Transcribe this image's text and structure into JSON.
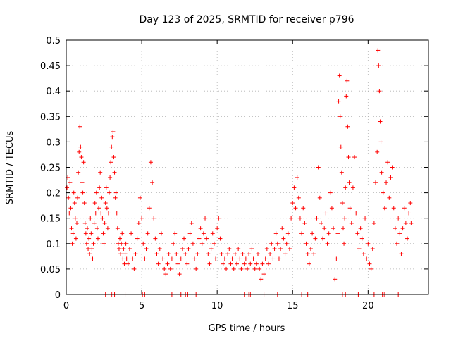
{
  "chart_data": {
    "type": "scatter",
    "title": "Day 123 of 2025, SRMTID for receiver p796",
    "xlabel": "GPS time / hours",
    "ylabel": "SRMTID / TECUs",
    "xlim": [
      0,
      24
    ],
    "ylim": [
      0,
      0.5
    ],
    "xticks": [
      0,
      5,
      10,
      15,
      20
    ],
    "xtick_labels": [
      "0",
      "5",
      "10",
      "15",
      "20"
    ],
    "yticks": [
      0,
      0.05,
      0.1,
      0.15,
      0.2,
      0.25,
      0.3,
      0.35,
      0.4,
      0.45,
      0.5
    ],
    "ytick_labels": [
      "0",
      "0.05",
      "0.1",
      "0.15",
      "0.2",
      "0.25",
      "0.3",
      "0.35",
      "0.4",
      "0.45",
      "0.5"
    ],
    "grid": true,
    "marker": "+",
    "color": "#ff0000",
    "series": [
      {
        "name": "SRMTID",
        "points": [
          [
            0.05,
            0.21
          ],
          [
            0.1,
            0.23
          ],
          [
            0.15,
            0.19
          ],
          [
            0.2,
            0.16
          ],
          [
            0.25,
            0.22
          ],
          [
            0.3,
            0.17
          ],
          [
            0.35,
            0.13
          ],
          [
            0.4,
            0.1
          ],
          [
            0.45,
            0.12
          ],
          [
            0.5,
            0.2
          ],
          [
            0.55,
            0.18
          ],
          [
            0.6,
            0.15
          ],
          [
            0.65,
            0.11
          ],
          [
            0.7,
            0.14
          ],
          [
            0.75,
            0.19
          ],
          [
            0.8,
            0.24
          ],
          [
            0.85,
            0.28
          ],
          [
            0.9,
            0.33
          ],
          [
            0.95,
            0.29
          ],
          [
            1.0,
            0.27
          ],
          [
            1.05,
            0.22
          ],
          [
            1.1,
            0.2
          ],
          [
            1.15,
            0.26
          ],
          [
            1.2,
            0.18
          ],
          [
            1.25,
            0.14
          ],
          [
            1.3,
            0.12
          ],
          [
            1.35,
            0.1
          ],
          [
            1.4,
            0.13
          ],
          [
            1.45,
            0.09
          ],
          [
            1.5,
            0.11
          ],
          [
            1.55,
            0.08
          ],
          [
            1.6,
            0.15
          ],
          [
            1.65,
            0.12
          ],
          [
            1.7,
            0.09
          ],
          [
            1.75,
            0.07
          ],
          [
            1.8,
            0.1
          ],
          [
            1.85,
            0.14
          ],
          [
            1.9,
            0.18
          ],
          [
            1.95,
            0.16
          ],
          [
            2.0,
            0.2
          ],
          [
            2.05,
            0.13
          ],
          [
            2.1,
            0.11
          ],
          [
            2.15,
            0.17
          ],
          [
            2.2,
            0.21
          ],
          [
            2.25,
            0.24
          ],
          [
            2.3,
            0.16
          ],
          [
            2.35,
            0.19
          ],
          [
            2.4,
            0.15
          ],
          [
            2.45,
            0.12
          ],
          [
            2.5,
            0.1
          ],
          [
            2.55,
            0.14
          ],
          [
            2.6,
            0.18
          ],
          [
            2.65,
            0.21
          ],
          [
            2.7,
            0.17
          ],
          [
            2.75,
            0.13
          ],
          [
            2.8,
            0.16
          ],
          [
            2.85,
            0.2
          ],
          [
            2.9,
            0.23
          ],
          [
            2.95,
            0.26
          ],
          [
            3.0,
            0.29
          ],
          [
            3.05,
            0.31
          ],
          [
            3.1,
            0.32
          ],
          [
            3.15,
            0.27
          ],
          [
            3.2,
            0.24
          ],
          [
            3.25,
            0.19
          ],
          [
            3.3,
            0.2
          ],
          [
            3.35,
            0.16
          ],
          [
            3.4,
            0.13
          ],
          [
            3.45,
            0.1
          ],
          [
            3.5,
            0.09
          ],
          [
            3.55,
            0.11
          ],
          [
            3.6,
            0.08
          ],
          [
            3.65,
            0.1
          ],
          [
            3.7,
            0.12
          ],
          [
            3.75,
            0.07
          ],
          [
            3.8,
            0.09
          ],
          [
            3.85,
            0.06
          ],
          [
            3.9,
            0.08
          ],
          [
            3.95,
            0.1
          ],
          [
            4.0,
            0.07
          ],
          [
            4.1,
            0.06
          ],
          [
            4.2,
            0.09
          ],
          [
            4.3,
            0.12
          ],
          [
            4.4,
            0.07
          ],
          [
            4.5,
            0.05
          ],
          [
            4.6,
            0.08
          ],
          [
            4.7,
            0.11
          ],
          [
            4.8,
            0.14
          ],
          [
            4.9,
            0.19
          ],
          [
            5.0,
            0.15
          ],
          [
            5.1,
            0.1
          ],
          [
            5.2,
            0.07
          ],
          [
            5.3,
            0.09
          ],
          [
            5.4,
            0.12
          ],
          [
            5.5,
            0.17
          ],
          [
            5.6,
            0.26
          ],
          [
            5.7,
            0.22
          ],
          [
            5.8,
            0.15
          ],
          [
            5.9,
            0.11
          ],
          [
            6.0,
            0.08
          ],
          [
            6.1,
            0.06
          ],
          [
            6.2,
            0.09
          ],
          [
            6.3,
            0.12
          ],
          [
            6.4,
            0.07
          ],
          [
            6.5,
            0.05
          ],
          [
            6.6,
            0.04
          ],
          [
            6.7,
            0.06
          ],
          [
            6.8,
            0.08
          ],
          [
            6.9,
            0.05
          ],
          [
            7.0,
            0.07
          ],
          [
            7.1,
            0.1
          ],
          [
            7.2,
            0.12
          ],
          [
            7.3,
            0.08
          ],
          [
            7.4,
            0.06
          ],
          [
            7.5,
            0.04
          ],
          [
            7.6,
            0.07
          ],
          [
            7.7,
            0.09
          ],
          [
            7.8,
            0.11
          ],
          [
            7.9,
            0.08
          ],
          [
            8.0,
            0.06
          ],
          [
            8.1,
            0.09
          ],
          [
            8.2,
            0.12
          ],
          [
            8.3,
            0.14
          ],
          [
            8.4,
            0.1
          ],
          [
            8.5,
            0.07
          ],
          [
            8.6,
            0.05
          ],
          [
            8.7,
            0.08
          ],
          [
            8.8,
            0.11
          ],
          [
            8.9,
            0.13
          ],
          [
            9.0,
            0.1
          ],
          [
            9.1,
            0.12
          ],
          [
            9.2,
            0.15
          ],
          [
            9.3,
            0.11
          ],
          [
            9.4,
            0.08
          ],
          [
            9.5,
            0.06
          ],
          [
            9.6,
            0.09
          ],
          [
            9.7,
            0.12
          ],
          [
            9.8,
            0.1
          ],
          [
            9.9,
            0.07
          ],
          [
            10.0,
            0.13
          ],
          [
            10.1,
            0.15
          ],
          [
            10.2,
            0.11
          ],
          [
            10.3,
            0.08
          ],
          [
            10.4,
            0.06
          ],
          [
            10.5,
            0.07
          ],
          [
            10.6,
            0.05
          ],
          [
            10.7,
            0.08
          ],
          [
            10.8,
            0.09
          ],
          [
            10.9,
            0.06
          ],
          [
            11.0,
            0.07
          ],
          [
            11.1,
            0.05
          ],
          [
            11.2,
            0.08
          ],
          [
            11.3,
            0.06
          ],
          [
            11.4,
            0.09
          ],
          [
            11.5,
            0.07
          ],
          [
            11.6,
            0.05
          ],
          [
            11.7,
            0.08
          ],
          [
            11.8,
            0.06
          ],
          [
            11.9,
            0.07
          ],
          [
            12.0,
            0.05
          ],
          [
            12.1,
            0.08
          ],
          [
            12.2,
            0.06
          ],
          [
            12.3,
            0.09
          ],
          [
            12.4,
            0.07
          ],
          [
            12.5,
            0.05
          ],
          [
            12.6,
            0.06
          ],
          [
            12.7,
            0.08
          ],
          [
            12.8,
            0.05
          ],
          [
            12.9,
            0.03
          ],
          [
            13.0,
            0.06
          ],
          [
            13.1,
            0.04
          ],
          [
            13.2,
            0.07
          ],
          [
            13.3,
            0.09
          ],
          [
            13.4,
            0.06
          ],
          [
            13.5,
            0.08
          ],
          [
            13.6,
            0.1
          ],
          [
            13.7,
            0.07
          ],
          [
            13.8,
            0.09
          ],
          [
            13.9,
            0.12
          ],
          [
            14.0,
            0.1
          ],
          [
            14.1,
            0.07
          ],
          [
            14.2,
            0.09
          ],
          [
            14.3,
            0.13
          ],
          [
            14.4,
            0.11
          ],
          [
            14.5,
            0.08
          ],
          [
            14.6,
            0.1
          ],
          [
            14.7,
            0.12
          ],
          [
            14.8,
            0.09
          ],
          [
            14.9,
            0.15
          ],
          [
            15.0,
            0.18
          ],
          [
            15.1,
            0.21
          ],
          [
            15.2,
            0.17
          ],
          [
            15.3,
            0.23
          ],
          [
            15.4,
            0.19
          ],
          [
            15.5,
            0.15
          ],
          [
            15.6,
            0.12
          ],
          [
            15.7,
            0.17
          ],
          [
            15.8,
            0.14
          ],
          [
            15.9,
            0.1
          ],
          [
            16.0,
            0.08
          ],
          [
            16.1,
            0.06
          ],
          [
            16.2,
            0.09
          ],
          [
            16.3,
            0.12
          ],
          [
            16.4,
            0.08
          ],
          [
            16.5,
            0.11
          ],
          [
            16.6,
            0.15
          ],
          [
            16.7,
            0.25
          ],
          [
            16.8,
            0.19
          ],
          [
            16.9,
            0.14
          ],
          [
            17.0,
            0.11
          ],
          [
            17.1,
            0.13
          ],
          [
            17.2,
            0.16
          ],
          [
            17.3,
            0.1
          ],
          [
            17.4,
            0.12
          ],
          [
            17.5,
            0.2
          ],
          [
            17.6,
            0.17
          ],
          [
            17.7,
            0.13
          ],
          [
            17.8,
            0.03
          ],
          [
            17.9,
            0.07
          ],
          [
            18.0,
            0.12
          ],
          [
            18.05,
            0.38
          ],
          [
            18.1,
            0.43
          ],
          [
            18.15,
            0.35
          ],
          [
            18.2,
            0.29
          ],
          [
            18.25,
            0.24
          ],
          [
            18.3,
            0.18
          ],
          [
            18.35,
            0.13
          ],
          [
            18.4,
            0.1
          ],
          [
            18.45,
            0.15
          ],
          [
            18.5,
            0.21
          ],
          [
            18.55,
            0.39
          ],
          [
            18.6,
            0.42
          ],
          [
            18.65,
            0.33
          ],
          [
            18.7,
            0.27
          ],
          [
            18.75,
            0.22
          ],
          [
            18.8,
            0.17
          ],
          [
            18.9,
            0.14
          ],
          [
            19.0,
            0.21
          ],
          [
            19.1,
            0.27
          ],
          [
            19.2,
            0.16
          ],
          [
            19.3,
            0.12
          ],
          [
            19.4,
            0.09
          ],
          [
            19.5,
            0.13
          ],
          [
            19.6,
            0.11
          ],
          [
            19.7,
            0.08
          ],
          [
            19.8,
            0.15
          ],
          [
            19.9,
            0.07
          ],
          [
            20.0,
            0.1
          ],
          [
            20.1,
            0.06
          ],
          [
            20.2,
            0.05
          ],
          [
            20.3,
            0.09
          ],
          [
            20.4,
            0.14
          ],
          [
            20.5,
            0.22
          ],
          [
            20.6,
            0.28
          ],
          [
            20.65,
            0.48
          ],
          [
            20.7,
            0.45
          ],
          [
            20.75,
            0.4
          ],
          [
            20.8,
            0.34
          ],
          [
            20.85,
            0.3
          ],
          [
            20.9,
            0.24
          ],
          [
            21.0,
            0.2
          ],
          [
            21.1,
            0.17
          ],
          [
            21.2,
            0.22
          ],
          [
            21.3,
            0.26
          ],
          [
            21.4,
            0.19
          ],
          [
            21.5,
            0.23
          ],
          [
            21.6,
            0.25
          ],
          [
            21.7,
            0.17
          ],
          [
            21.8,
            0.13
          ],
          [
            21.9,
            0.1
          ],
          [
            22.0,
            0.15
          ],
          [
            22.1,
            0.12
          ],
          [
            22.2,
            0.08
          ],
          [
            22.3,
            0.13
          ],
          [
            22.4,
            0.17
          ],
          [
            22.5,
            0.14
          ],
          [
            22.6,
            0.11
          ],
          [
            22.7,
            0.16
          ],
          [
            22.8,
            0.18
          ],
          [
            22.85,
            0.14
          ]
        ]
      },
      {
        "name": "zero-level markers",
        "points": [
          [
            2.6,
            0
          ],
          [
            3.0,
            0
          ],
          [
            3.1,
            0
          ],
          [
            3.2,
            0
          ],
          [
            3.9,
            0
          ],
          [
            5.05,
            0
          ],
          [
            5.2,
            0
          ],
          [
            7.0,
            0
          ],
          [
            7.6,
            0
          ],
          [
            7.9,
            0
          ],
          [
            8.05,
            0
          ],
          [
            8.6,
            0
          ],
          [
            11.8,
            0
          ],
          [
            12.1,
            0
          ],
          [
            12.2,
            0
          ],
          [
            13.1,
            0
          ],
          [
            14.0,
            0
          ],
          [
            15.6,
            0
          ],
          [
            16.0,
            0
          ],
          [
            18.3,
            0
          ],
          [
            18.5,
            0
          ],
          [
            19.35,
            0
          ],
          [
            20.4,
            0
          ],
          [
            20.95,
            0
          ],
          [
            21.0,
            0
          ],
          [
            21.1,
            0
          ],
          [
            22.0,
            0
          ]
        ]
      }
    ]
  }
}
